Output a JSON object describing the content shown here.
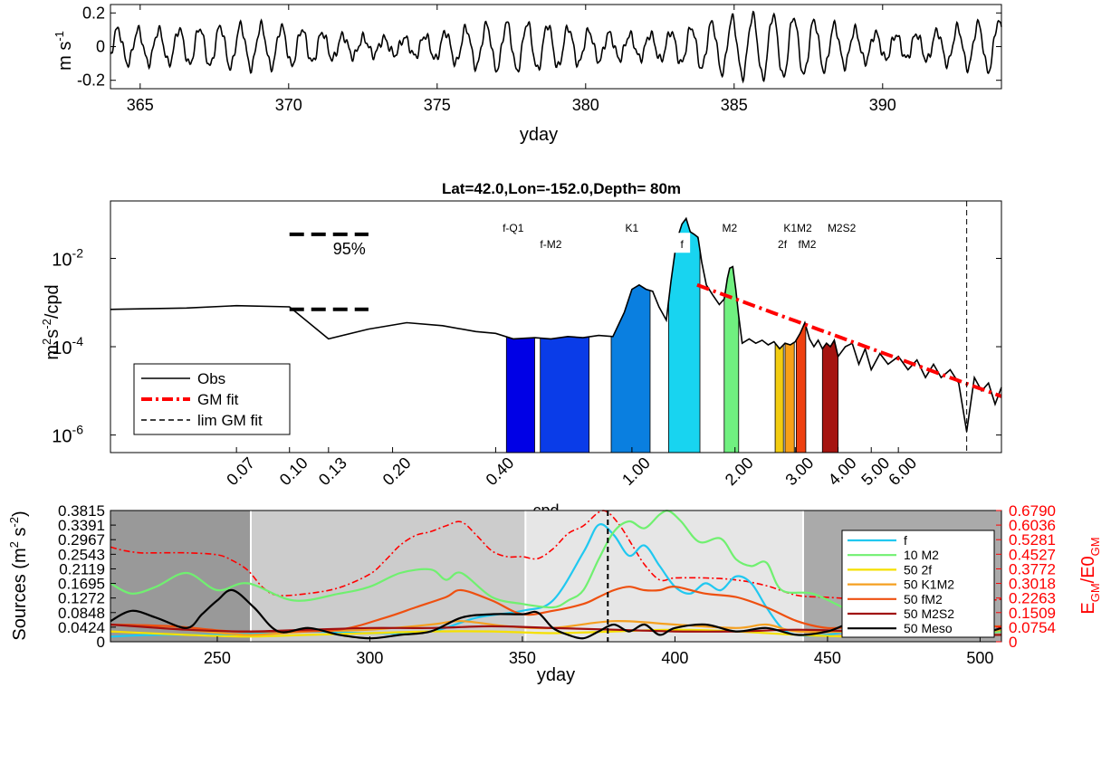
{
  "chart_data": [
    {
      "type": "line",
      "xlabel": "yday",
      "ylabel_base": "m s",
      "ylabel_exp": "-1",
      "xlim": [
        364,
        394
      ],
      "ylim": [
        -0.25,
        0.25
      ],
      "xticks": [
        365,
        370,
        375,
        380,
        385,
        390
      ],
      "yticks": [
        -0.2,
        0,
        0.2
      ],
      "ytick_labels": [
        "-0.2",
        "0",
        "0.2"
      ],
      "series": [
        {
          "x": [],
          "y": [],
          "color": "#000000"
        }
      ]
    },
    {
      "type": "line",
      "title": "Lat=42.0,Lon=-152.0,Depth= 80m",
      "log_x": true,
      "log_y": true,
      "xlabel": "cpd",
      "ylabel_parts": [
        "m",
        "2",
        "s",
        "-2",
        "/cpd"
      ],
      "xlim": [
        0.03,
        12.0
      ],
      "ylim": [
        4e-07,
        0.2
      ],
      "yticks": [
        1e-06,
        0.0001,
        0.01
      ],
      "ytick_labels": [
        {
          "base": "10",
          "exp": "-6"
        },
        {
          "base": "10",
          "exp": "-4"
        },
        {
          "base": "10",
          "exp": "-2"
        }
      ],
      "xticks": [
        0.07,
        0.1,
        0.13,
        0.2,
        0.4,
        1.0,
        2.0,
        3.0,
        4.0,
        5.0,
        6.0
      ],
      "xtick_labels": [
        "0.07",
        "0.10",
        "0.13",
        "0.20",
        "0.40",
        "1.00",
        "2.00",
        "3.00",
        "4.00",
        "5.00",
        "6.00"
      ],
      "limit_line_x": 9.5,
      "confidence": {
        "label": "95%",
        "x": [
          0.1,
          0.17
        ],
        "upper": 0.035,
        "lower": 0.0007
      },
      "legend": {
        "position": "bottom-left",
        "items": [
          {
            "label": "Obs",
            "color": "#000000",
            "style": "solid"
          },
          {
            "label": "GM fit",
            "color": "#ff0000",
            "style": "dashdot"
          },
          {
            "label": "lim GM fit",
            "color": "#000000",
            "style": "dashed"
          }
        ]
      },
      "spectrum": [
        [
          0.03,
          0.0007
        ],
        [
          0.05,
          0.00075
        ],
        [
          0.07,
          0.00085
        ],
        [
          0.1,
          0.0008
        ],
        [
          0.13,
          0.00015
        ],
        [
          0.17,
          0.00025
        ],
        [
          0.22,
          0.00035
        ],
        [
          0.28,
          0.0003
        ],
        [
          0.35,
          0.00022
        ],
        [
          0.4,
          0.0002
        ],
        [
          0.45,
          0.00015
        ],
        [
          0.52,
          0.00016
        ],
        [
          0.58,
          0.00015
        ],
        [
          0.65,
          0.00017
        ],
        [
          0.72,
          0.00016
        ],
        [
          0.8,
          0.00018
        ],
        [
          0.88,
          0.00017
        ],
        [
          0.95,
          0.0006
        ],
        [
          1.0,
          0.002
        ],
        [
          1.05,
          0.0025
        ],
        [
          1.1,
          0.002
        ],
        [
          1.15,
          0.0018
        ],
        [
          1.2,
          0.0008
        ],
        [
          1.26,
          0.0004
        ],
        [
          1.3,
          0.003
        ],
        [
          1.35,
          0.025
        ],
        [
          1.4,
          0.06
        ],
        [
          1.44,
          0.08
        ],
        [
          1.48,
          0.04
        ],
        [
          1.52,
          0.035
        ],
        [
          1.56,
          0.03
        ],
        [
          1.6,
          0.008
        ],
        [
          1.65,
          0.0025
        ],
        [
          1.72,
          0.0015
        ],
        [
          1.8,
          0.0009
        ],
        [
          1.86,
          0.0012
        ],
        [
          1.9,
          0.0035
        ],
        [
          1.93,
          0.006
        ],
        [
          1.97,
          0.0065
        ],
        [
          2.01,
          0.002
        ],
        [
          2.05,
          0.0005
        ],
        [
          2.1,
          0.00012
        ],
        [
          2.2,
          0.00015
        ],
        [
          2.3,
          0.00012
        ],
        [
          2.4,
          0.00014
        ],
        [
          2.5,
          0.00011
        ],
        [
          2.6,
          0.00013
        ],
        [
          2.7,
          9e-05
        ],
        [
          2.8,
          0.00012
        ],
        [
          2.9,
          0.00011
        ],
        [
          3.0,
          0.00013
        ],
        [
          3.1,
          0.0002
        ],
        [
          3.2,
          0.00035
        ],
        [
          3.3,
          0.00015
        ],
        [
          3.4,
          0.0001
        ],
        [
          3.5,
          0.00014
        ],
        [
          3.6,
          9e-05
        ],
        [
          3.7,
          0.00012
        ],
        [
          3.8,
          0.0001
        ],
        [
          3.9,
          0.00014
        ],
        [
          4.0,
          6e-05
        ],
        [
          4.2,
          0.0001
        ],
        [
          4.4,
          0.00012
        ],
        [
          4.6,
          4e-05
        ],
        [
          4.8,
          9e-05
        ],
        [
          5.0,
          3e-05
        ],
        [
          5.3,
          7e-05
        ],
        [
          5.6,
          4e-05
        ],
        [
          6.0,
          6e-05
        ],
        [
          6.4,
          3e-05
        ],
        [
          6.8,
          5e-05
        ],
        [
          7.2,
          2e-05
        ],
        [
          7.6,
          4e-05
        ],
        [
          8.0,
          2e-05
        ],
        [
          8.5,
          3e-05
        ],
        [
          9.0,
          1.5e-05
        ],
        [
          9.5,
          1.2e-06
        ],
        [
          10.0,
          2e-05
        ],
        [
          10.5,
          1e-05
        ],
        [
          11.0,
          1.5e-05
        ],
        [
          11.5,
          5e-06
        ],
        [
          12.0,
          1.2e-05
        ]
      ],
      "gm_fit": {
        "x_start": 1.55,
        "x_end": 12.0,
        "y_start": 0.0025,
        "y_end": 7.5e-06
      },
      "bands": [
        {
          "x0": 0.43,
          "x1": 0.52,
          "level": 0.00016,
          "color": "#0000e6"
        },
        {
          "x0": 0.54,
          "x1": 0.75,
          "level": 0.00017,
          "color": "#0a3ce8"
        },
        {
          "x0": 0.87,
          "x1": 1.13,
          "level": 0.0025,
          "color": "#0a7fe0"
        },
        {
          "x0": 1.28,
          "x1": 1.58,
          "level": 0.07,
          "color": "#18d4f0"
        },
        {
          "x0": 1.86,
          "x1": 2.05,
          "level": 0.006,
          "color": "#70f080"
        },
        {
          "x0": 2.62,
          "x1": 2.77,
          "level": 0.00012,
          "color": "#f2cc10"
        },
        {
          "x0": 2.8,
          "x1": 2.98,
          "level": 0.00013,
          "color": "#f7a018"
        },
        {
          "x0": 3.02,
          "x1": 3.22,
          "level": 0.00035,
          "color": "#ee4010"
        },
        {
          "x0": 3.6,
          "x1": 4.0,
          "level": 0.00012,
          "color": "#a51410"
        }
      ],
      "annotations": [
        {
          "text": "f-Q1",
          "x": 0.45,
          "y": 0.04
        },
        {
          "text": "f-M2",
          "x": 0.58,
          "y": 0.017
        },
        {
          "text": "K1",
          "x": 1.0,
          "y": 0.04
        },
        {
          "text": "f",
          "x": 1.4,
          "y": 0.017,
          "boxed": true
        },
        {
          "text": "M2",
          "x": 1.93,
          "y": 0.04
        },
        {
          "text": "2f",
          "x": 2.75,
          "y": 0.017
        },
        {
          "text": "K1M2",
          "x": 3.05,
          "y": 0.04
        },
        {
          "text": "fM2",
          "x": 3.25,
          "y": 0.017
        },
        {
          "text": "M2S2",
          "x": 4.1,
          "y": 0.04
        }
      ]
    },
    {
      "type": "line",
      "xlabel": "yday",
      "ylabel_parts": [
        "Sources (m",
        "2",
        " s",
        "-2",
        ")"
      ],
      "y2label_parts": [
        "E",
        "GM",
        "/E0",
        "GM"
      ],
      "xlim": [
        215,
        507
      ],
      "ylim": [
        0,
        0.3815
      ],
      "y2lim": [
        0,
        0.679
      ],
      "xticks": [
        250,
        300,
        350,
        400,
        450,
        500
      ],
      "yticks": [
        0,
        0.0424,
        0.0848,
        0.1272,
        0.1695,
        0.2119,
        0.2543,
        0.2967,
        0.3391,
        0.3815
      ],
      "ytick_labels": [
        "0",
        "0.0424",
        "0.0848",
        "0.1272",
        "0.1695",
        "0.2119",
        "0.2543",
        "0.2967",
        "0.3391",
        "0.3815"
      ],
      "y2ticks": [
        0,
        0.0754,
        0.1509,
        0.2263,
        0.3018,
        0.3772,
        0.4527,
        0.5281,
        0.6036,
        0.679
      ],
      "y2tick_labels": [
        "0",
        "0.0754",
        "0.1509",
        "0.2263",
        "0.3018",
        "0.3772",
        "0.4527",
        "0.5281",
        "0.6036",
        "0.6790"
      ],
      "vline_x": 378,
      "shading": [
        {
          "x0": 215,
          "x1": 261,
          "color": "#999999"
        },
        {
          "x0": 261,
          "x1": 351,
          "color": "#cccccc"
        },
        {
          "x0": 351,
          "x1": 442,
          "color": "#e6e6e6"
        },
        {
          "x0": 442,
          "x1": 507,
          "color": "#aaaaaa"
        }
      ],
      "legend": {
        "position": "top-right"
      },
      "series": [
        {
          "name": "f",
          "color": "#20c8f0",
          "x": [
            215,
            230,
            250,
            265,
            280,
            300,
            320,
            335,
            350,
            360,
            370,
            375,
            380,
            385,
            390,
            395,
            400,
            405,
            410,
            415,
            420,
            425,
            430,
            435,
            440,
            450,
            460,
            470,
            480,
            490,
            500,
            507
          ],
          "y": [
            0.015,
            0.02,
            0.02,
            0.025,
            0.03,
            0.025,
            0.03,
            0.07,
            0.09,
            0.12,
            0.26,
            0.34,
            0.31,
            0.25,
            0.28,
            0.22,
            0.16,
            0.14,
            0.17,
            0.15,
            0.19,
            0.17,
            0.1,
            0.04,
            0.02,
            0.02,
            0.035,
            0.03,
            0.02,
            0.025,
            0.02,
            0.02
          ]
        },
        {
          "name": "10 M2",
          "color": "#70f070",
          "x": [
            215,
            222,
            230,
            240,
            250,
            260,
            275,
            290,
            300,
            310,
            320,
            325,
            330,
            340,
            350,
            360,
            365,
            370,
            375,
            380,
            385,
            390,
            395,
            398,
            402,
            408,
            415,
            420,
            425,
            430,
            435,
            445,
            455,
            460,
            470,
            480,
            490,
            500,
            507
          ],
          "y": [
            0.17,
            0.14,
            0.16,
            0.2,
            0.15,
            0.17,
            0.12,
            0.14,
            0.16,
            0.2,
            0.21,
            0.18,
            0.2,
            0.13,
            0.11,
            0.1,
            0.12,
            0.15,
            0.24,
            0.32,
            0.35,
            0.33,
            0.37,
            0.38,
            0.35,
            0.29,
            0.3,
            0.24,
            0.22,
            0.23,
            0.15,
            0.14,
            0.1,
            0.08,
            0.06,
            0.04,
            0.03,
            0.025,
            0.03
          ]
        },
        {
          "name": "50 2f",
          "color": "#f5e000",
          "x": [
            215,
            240,
            260,
            280,
            300,
            320,
            340,
            360,
            380,
            400,
            420,
            440,
            460,
            480,
            500,
            507
          ],
          "y": [
            0.03,
            0.02,
            0.015,
            0.02,
            0.025,
            0.03,
            0.03,
            0.025,
            0.03,
            0.035,
            0.03,
            0.02,
            0.015,
            0.02,
            0.02,
            0.02
          ]
        },
        {
          "name": "50 K1M2",
          "color": "#f5a020",
          "x": [
            215,
            240,
            260,
            280,
            300,
            320,
            330,
            345,
            360,
            380,
            400,
            420,
            430,
            440,
            460,
            480,
            500,
            507
          ],
          "y": [
            0.05,
            0.035,
            0.02,
            0.03,
            0.035,
            0.05,
            0.06,
            0.045,
            0.04,
            0.06,
            0.05,
            0.04,
            0.05,
            0.03,
            0.03,
            0.035,
            0.03,
            0.035
          ]
        },
        {
          "name": "50 fM2",
          "color": "#ee5010",
          "x": [
            215,
            235,
            255,
            270,
            290,
            305,
            315,
            325,
            330,
            340,
            350,
            360,
            370,
            375,
            380,
            385,
            390,
            395,
            400,
            410,
            420,
            430,
            440,
            450,
            460,
            470,
            480,
            490,
            500,
            507
          ],
          "y": [
            0.05,
            0.045,
            0.03,
            0.03,
            0.035,
            0.07,
            0.1,
            0.13,
            0.15,
            0.12,
            0.08,
            0.09,
            0.11,
            0.13,
            0.15,
            0.16,
            0.15,
            0.15,
            0.16,
            0.14,
            0.13,
            0.1,
            0.06,
            0.04,
            0.045,
            0.05,
            0.04,
            0.05,
            0.045,
            0.045
          ]
        },
        {
          "name": "50 M2S2",
          "color": "#a01010",
          "x": [
            215,
            240,
            260,
            280,
            300,
            320,
            340,
            360,
            380,
            400,
            420,
            440,
            460,
            480,
            500,
            507
          ],
          "y": [
            0.05,
            0.035,
            0.03,
            0.035,
            0.04,
            0.04,
            0.045,
            0.04,
            0.035,
            0.03,
            0.03,
            0.035,
            0.03,
            0.025,
            0.02,
            0.02
          ]
        },
        {
          "name": "50 Meso",
          "color": "#000000",
          "x": [
            215,
            222,
            230,
            240,
            245,
            250,
            255,
            262,
            270,
            280,
            290,
            300,
            310,
            320,
            330,
            340,
            350,
            355,
            360,
            365,
            370,
            375,
            380,
            385,
            390,
            395,
            400,
            410,
            420,
            430,
            440,
            450,
            460,
            470,
            480,
            490,
            500,
            507
          ],
          "y": [
            0.06,
            0.09,
            0.07,
            0.04,
            0.08,
            0.12,
            0.15,
            0.1,
            0.03,
            0.04,
            0.02,
            0.01,
            0.02,
            0.03,
            0.07,
            0.08,
            0.08,
            0.085,
            0.04,
            0.02,
            0.01,
            0.03,
            0.05,
            0.03,
            0.05,
            0.02,
            0.04,
            0.05,
            0.03,
            0.04,
            0.02,
            0.03,
            0.06,
            0.04,
            0.02,
            0.03,
            0.025,
            0.04
          ]
        }
      ],
      "ratio_series": {
        "color": "#ff0000",
        "x": [
          215,
          220,
          225,
          230,
          240,
          250,
          255,
          260,
          265,
          270,
          280,
          290,
          300,
          305,
          310,
          315,
          320,
          325,
          330,
          335,
          340,
          345,
          350,
          355,
          360,
          365,
          370,
          375,
          378,
          382,
          386,
          390,
          395,
          400,
          410,
          420,
          430,
          440,
          450,
          460,
          470,
          480,
          490,
          500,
          507
        ],
        "y": [
          0.49,
          0.47,
          0.46,
          0.46,
          0.46,
          0.45,
          0.42,
          0.37,
          0.28,
          0.24,
          0.25,
          0.28,
          0.35,
          0.42,
          0.5,
          0.55,
          0.57,
          0.6,
          0.62,
          0.55,
          0.47,
          0.44,
          0.44,
          0.43,
          0.48,
          0.56,
          0.6,
          0.67,
          0.67,
          0.6,
          0.5,
          0.4,
          0.32,
          0.33,
          0.33,
          0.32,
          0.29,
          0.24,
          0.23,
          0.22,
          0.21,
          0.21,
          0.21,
          0.21,
          0.22
        ]
      }
    }
  ]
}
